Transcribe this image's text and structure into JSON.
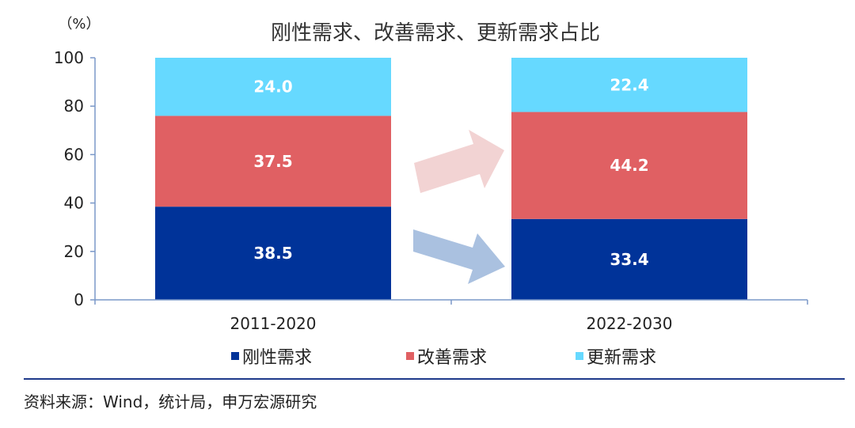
{
  "chart_data": {
    "type": "stacked-bar",
    "title": "刚性需求、改善需求、更新需求占比",
    "y_unit_label": "（%）",
    "ylim": [
      0,
      100
    ],
    "y_ticks": [
      0,
      20,
      40,
      60,
      80,
      100
    ],
    "categories": [
      "2011-2020",
      "2022-2030"
    ],
    "series": [
      {
        "name": "刚性需求",
        "color": "#003399",
        "values": [
          38.5,
          33.4
        ],
        "labels": [
          "38.5",
          "33.4"
        ]
      },
      {
        "name": "改善需求",
        "color": "#e06063",
        "values": [
          37.5,
          44.2
        ],
        "labels": [
          "37.5",
          "44.2"
        ]
      },
      {
        "name": "更新需求",
        "color": "#66d9ff",
        "values": [
          24.0,
          22.4
        ],
        "labels": [
          "24.0",
          "22.4"
        ]
      }
    ],
    "legend_position": "bottom",
    "grid": false,
    "annotations": [
      {
        "type": "arrow",
        "color": "#f2d3d3",
        "meaning": "改善需求 increase"
      },
      {
        "type": "arrow",
        "color": "#aac1e0",
        "meaning": "刚性需求 decrease"
      }
    ]
  },
  "source": "资料来源：Wind，统计局，申万宏源研究"
}
